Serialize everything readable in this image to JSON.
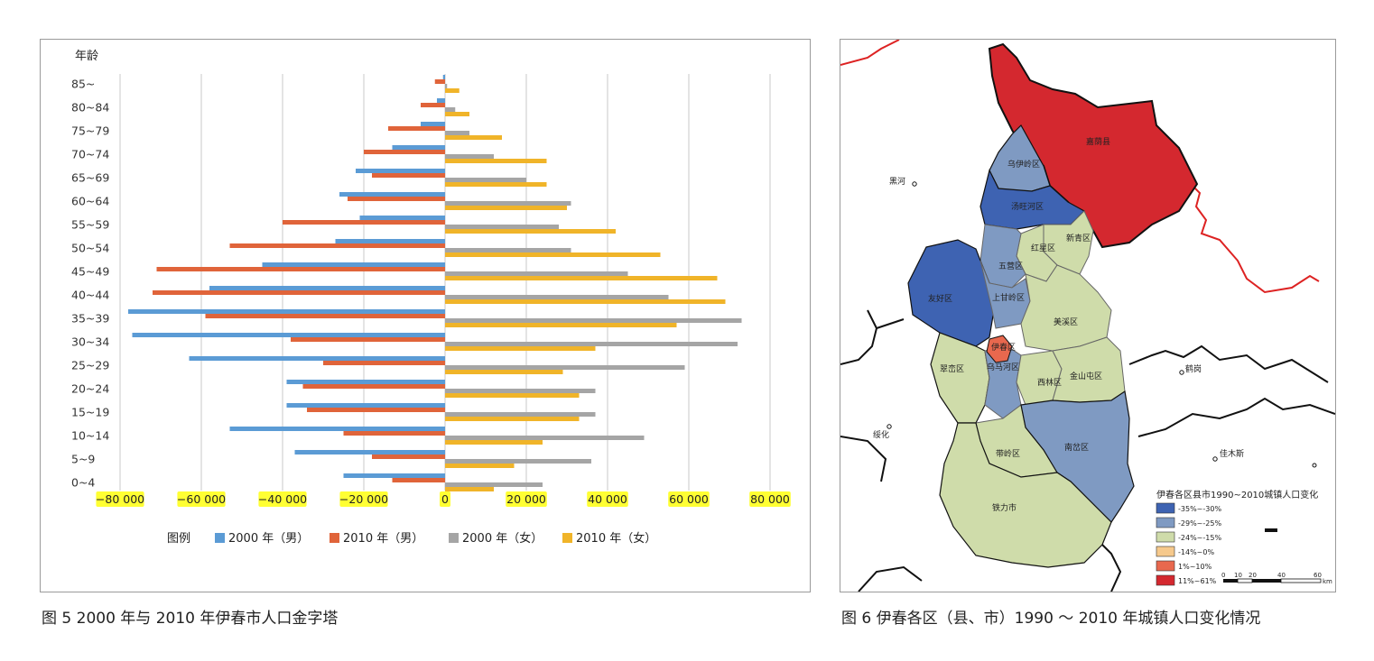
{
  "figure5": {
    "caption": "图 5 2000 年与 2010 年伊春市人口金字塔",
    "legend_label": "图例"
  },
  "figure6": {
    "caption": "图 6 伊春各区（县、市）1990 ～ 2010 年城镇人口变化情况",
    "legend_title": "伊春各区县市1990~2010城镇人口变化",
    "legend_items": [
      {
        "label": "-35%~-30%",
        "color": "#3e63b2"
      },
      {
        "label": "-29%~-25%",
        "color": "#7f9ac2"
      },
      {
        "label": "-24%~-15%",
        "color": "#cfdcaa"
      },
      {
        "label": "-14%~0%",
        "color": "#f6c98c"
      },
      {
        "label": "1%~10%",
        "color": "#e8684e"
      },
      {
        "label": "11%~61%",
        "color": "#d4282f"
      }
    ],
    "scale_ticks": [
      "0",
      "10",
      "20",
      "40",
      "60"
    ],
    "scale_unit": "km",
    "districts": [
      {
        "name": "嘉荫县"
      },
      {
        "name": "乌伊岭区"
      },
      {
        "name": "汤旺河区"
      },
      {
        "name": "新青区"
      },
      {
        "name": "红星区"
      },
      {
        "name": "五营区"
      },
      {
        "name": "友好区"
      },
      {
        "name": "上甘岭区"
      },
      {
        "name": "美溪区"
      },
      {
        "name": "伊春区"
      },
      {
        "name": "乌马河区"
      },
      {
        "name": "翠峦区"
      },
      {
        "name": "西林区"
      },
      {
        "name": "金山屯区"
      },
      {
        "name": "带岭区"
      },
      {
        "name": "南岔区"
      },
      {
        "name": "铁力市"
      }
    ],
    "cities": [
      {
        "name": "黑河"
      },
      {
        "name": "鹤岗"
      },
      {
        "name": "绥化"
      },
      {
        "name": "佳木斯"
      }
    ]
  },
  "chart_data": {
    "type": "bar",
    "orientation": "horizontal",
    "ylabel": "年龄",
    "categories": [
      "0~4",
      "5~9",
      "10~14",
      "15~19",
      "20~24",
      "25~29",
      "30~34",
      "35~39",
      "40~44",
      "45~49",
      "50~54",
      "55~59",
      "60~64",
      "65~69",
      "70~74",
      "75~79",
      "80~84",
      "85~"
    ],
    "xlim": [
      -80000,
      80000
    ],
    "xticks": [
      -80000,
      -60000,
      -40000,
      -20000,
      0,
      20000,
      40000,
      60000,
      80000
    ],
    "xtick_labels": [
      "−80 000",
      "−60 000",
      "−40 000",
      "−20 000",
      "0",
      "20 000",
      "40 000",
      "60 000",
      "80 000"
    ],
    "tick_highlight": "#ffff33",
    "grid": true,
    "legend_position": "bottom",
    "series": [
      {
        "name": "2000 年（男）",
        "color": "#5b9bd5",
        "values": [
          -25000,
          -37000,
          -53000,
          -39000,
          -39000,
          -63000,
          -77000,
          -78000,
          -58000,
          -45000,
          -27000,
          -21000,
          -26000,
          -22000,
          -13000,
          -6000,
          -2000,
          -500
        ]
      },
      {
        "name": "2010 年（男）",
        "color": "#e0643a",
        "values": [
          -13000,
          -18000,
          -25000,
          -34000,
          -35000,
          -30000,
          -38000,
          -59000,
          -72000,
          -71000,
          -53000,
          -40000,
          -24000,
          -18000,
          -20000,
          -14000,
          -6000,
          -2500
        ]
      },
      {
        "name": "2000 年（女）",
        "color": "#a5a5a5",
        "values": [
          24000,
          36000,
          49000,
          37000,
          37000,
          59000,
          72000,
          73000,
          55000,
          45000,
          31000,
          28000,
          31000,
          20000,
          12000,
          6000,
          2500,
          500
        ]
      },
      {
        "name": "2010 年（女）",
        "color": "#f0b429",
        "values": [
          12000,
          17000,
          24000,
          33000,
          33000,
          29000,
          37000,
          57000,
          69000,
          67000,
          53000,
          42000,
          30000,
          25000,
          25000,
          14000,
          6000,
          3500
        ]
      }
    ]
  }
}
